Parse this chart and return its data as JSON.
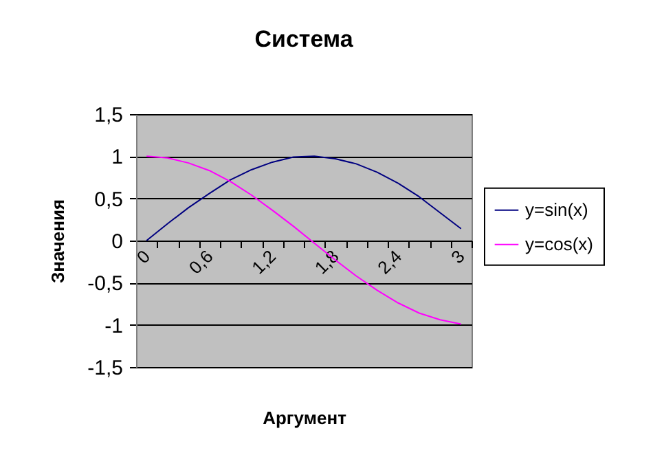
{
  "chart_data": {
    "type": "line",
    "title": "Система",
    "xlabel": "Аргумент",
    "ylabel": "Значения",
    "categories": [
      "0",
      null,
      null,
      "0,6",
      null,
      null,
      "1,2",
      null,
      null,
      "1,8",
      null,
      null,
      "2,4",
      null,
      null,
      "3"
    ],
    "series": [
      {
        "name": "y=sin(x)",
        "color": "#000080",
        "values": [
          0,
          0.2,
          0.39,
          0.56,
          0.72,
          0.84,
          0.93,
          0.99,
          1.0,
          0.97,
          0.91,
          0.81,
          0.68,
          0.52,
          0.33,
          0.14
        ]
      },
      {
        "name": "y=cos(x)",
        "color": "#ff00ff",
        "values": [
          1,
          0.98,
          0.92,
          0.83,
          0.7,
          0.54,
          0.36,
          0.17,
          -0.03,
          -0.23,
          -0.42,
          -0.59,
          -0.74,
          -0.86,
          -0.94,
          -0.99
        ]
      }
    ],
    "ylim": [
      -1.5,
      1.5
    ],
    "yticks": [
      {
        "value": -1.5,
        "label": "-1,5"
      },
      -1,
      {
        "value": -0.5,
        "label": "-0,5"
      },
      0,
      {
        "value": 0.5,
        "label": "0,5"
      },
      1,
      {
        "value": 1.5,
        "label": "1,5"
      }
    ],
    "grid": "y",
    "legend": "right"
  }
}
